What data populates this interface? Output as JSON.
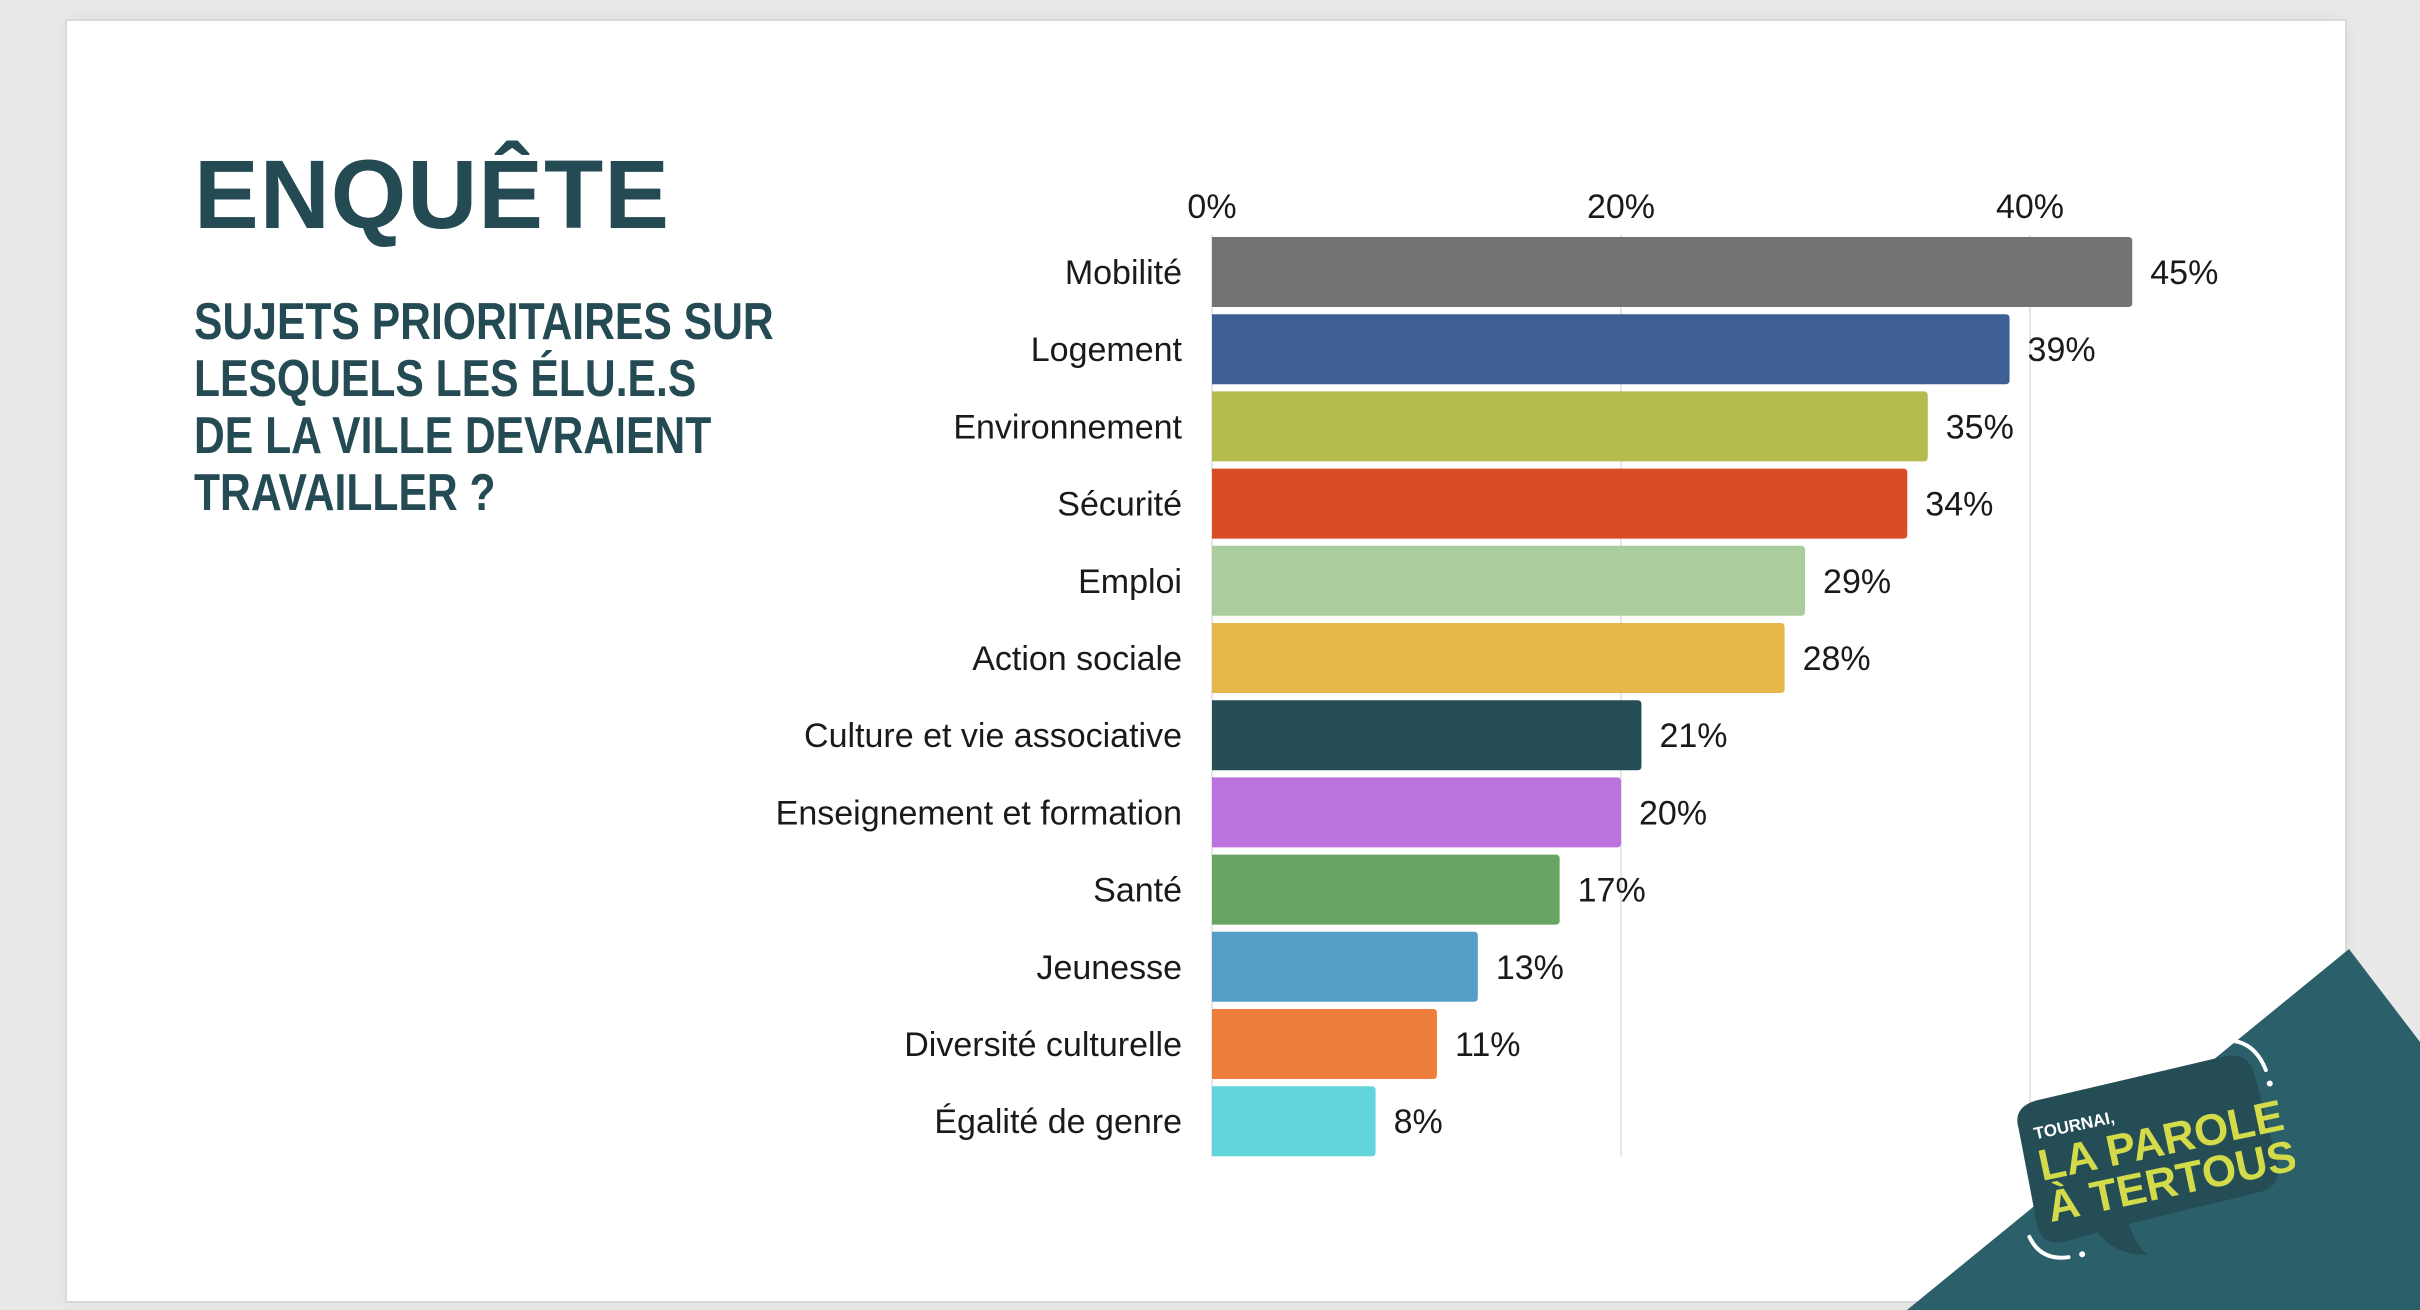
{
  "header": {
    "title": "ENQUÊTE",
    "subtitle_lines": [
      "SUJETS PRIORITAIRES SUR",
      "LESQUELS LES ÉLU.E.S",
      "DE LA VILLE DEVRAIENT",
      "TRAVAILLER ?"
    ]
  },
  "logo": {
    "small_text": "TOURNAI,",
    "line1": "LA PAROLE",
    "line2": "À TERTOUS !"
  },
  "colors": {
    "title": "#244b53",
    "band": "#2b5f6a",
    "bubble": "#244d55",
    "logo_text": "#d4db4a"
  },
  "chart_data": {
    "type": "bar",
    "orientation": "horizontal",
    "title": "SUJETS PRIORITAIRES SUR LESQUELS LES ÉLU.E.S DE LA VILLE DEVRAIENT TRAVAILLER ?",
    "xlabel": "",
    "ylabel": "",
    "xlim": [
      0,
      45
    ],
    "x_ticks": [
      0,
      20,
      40
    ],
    "x_tick_labels": [
      "0%",
      "20%",
      "40%"
    ],
    "x_axis_position": "top",
    "grid": true,
    "categories": [
      "Mobilité",
      "Logement",
      "Environnement",
      "Sécurité",
      "Emploi",
      "Action sociale",
      "Culture et vie associative",
      "Enseignement et formation",
      "Santé",
      "Jeunesse",
      "Diversité culturelle",
      "Égalité de genre"
    ],
    "values": [
      45,
      39,
      35,
      34,
      29,
      28,
      21,
      20,
      17,
      13,
      11,
      8
    ],
    "value_labels": [
      "45%",
      "39%",
      "35%",
      "34%",
      "29%",
      "28%",
      "21%",
      "20%",
      "17%",
      "13%",
      "11%",
      "8%"
    ],
    "bar_colors": [
      "#737373",
      "#3d5f93",
      "#b5bc4e",
      "#d84c26",
      "#abcd9d",
      "#e6b84b",
      "#244d55",
      "#bd73de",
      "#68a462",
      "#559fc7",
      "#ee7e3b",
      "#62d5dc"
    ]
  }
}
